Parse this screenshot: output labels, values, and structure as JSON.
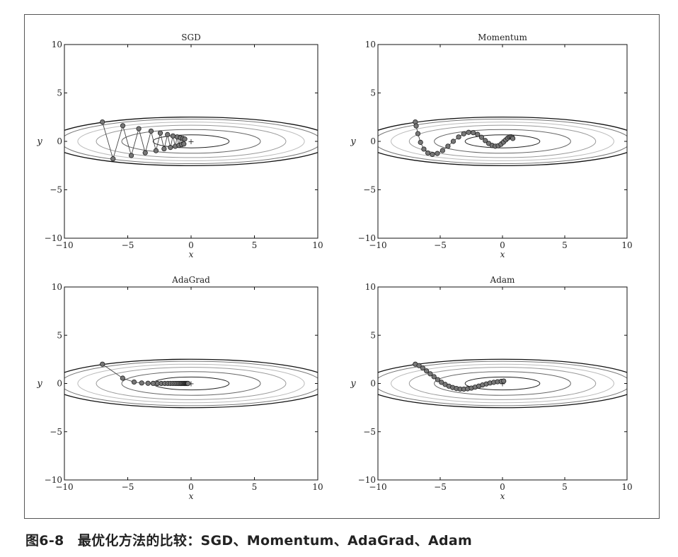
{
  "caption": "图6-8　最优化方法的比较：SGD、Momentum、AdaGrad、Adam",
  "chart_data": [
    {
      "type": "line",
      "title": "SGD",
      "xlabel": "x",
      "ylabel": "y",
      "xlim": [
        -10,
        10
      ],
      "ylim": [
        -10,
        10
      ],
      "xticks": [
        -10,
        -5,
        0,
        5,
        10
      ],
      "yticks": [
        -10,
        -5,
        0,
        5,
        10
      ],
      "xtick_labels": [
        "−10",
        "−5",
        "0",
        "5",
        "10"
      ],
      "ytick_labels": [
        "−10",
        "−5",
        "0",
        "5",
        "10"
      ],
      "contour": "f(x,y) = x^2/20 + y^2",
      "minimum_marker": "+",
      "series": [
        {
          "x": [
            -7.0,
            -6.16,
            -5.39,
            -4.72,
            -4.13,
            -3.62,
            -3.16,
            -2.77,
            -2.43,
            -2.13,
            -1.86,
            -1.63,
            -1.43,
            -1.25,
            -1.1,
            -0.96,
            -0.84,
            -0.74,
            -0.65,
            -0.57,
            -0.5
          ],
          "y": [
            2.0,
            -1.8,
            1.62,
            -1.46,
            1.31,
            -1.18,
            1.06,
            -0.96,
            0.86,
            -0.77,
            0.7,
            -0.63,
            0.56,
            -0.51,
            0.46,
            -0.41,
            0.37,
            -0.33,
            0.3,
            -0.27,
            0.24
          ]
        }
      ]
    },
    {
      "type": "line",
      "title": "Momentum",
      "xlabel": "x",
      "ylabel": "y",
      "xlim": [
        -10,
        10
      ],
      "ylim": [
        -10,
        10
      ],
      "xticks": [
        -10,
        -5,
        0,
        5,
        10
      ],
      "yticks": [
        -10,
        -5,
        0,
        5,
        10
      ],
      "xtick_labels": [
        "−10",
        "−5",
        "0",
        "5",
        "10"
      ],
      "ytick_labels": [
        "−10",
        "−5",
        "0",
        "5",
        "10"
      ],
      "contour": "f(x,y) = x^2/20 + y^2",
      "minimum_marker": "+",
      "series": [
        {
          "x": [
            -7.0,
            -6.93,
            -6.79,
            -6.58,
            -6.31,
            -5.99,
            -5.63,
            -5.23,
            -4.81,
            -4.38,
            -3.95,
            -3.52,
            -3.11,
            -2.72,
            -2.35,
            -2.0,
            -1.68,
            -1.38,
            -1.1,
            -0.83,
            -0.58,
            -0.34,
            -0.12,
            0.08,
            0.26,
            0.42,
            0.56,
            0.68,
            0.78,
            0.83
          ],
          "y": [
            2.0,
            1.6,
            0.8,
            -0.1,
            -0.8,
            -1.2,
            -1.35,
            -1.25,
            -0.95,
            -0.5,
            0.0,
            0.45,
            0.78,
            0.93,
            0.9,
            0.72,
            0.42,
            0.08,
            -0.22,
            -0.42,
            -0.5,
            -0.45,
            -0.3,
            -0.08,
            0.15,
            0.33,
            0.45,
            0.48,
            0.42,
            0.3
          ]
        }
      ]
    },
    {
      "type": "line",
      "title": "AdaGrad",
      "xlabel": "x",
      "ylabel": "y",
      "xlim": [
        -10,
        10
      ],
      "ylim": [
        -10,
        10
      ],
      "xticks": [
        -10,
        -5,
        0,
        5,
        10
      ],
      "yticks": [
        -10,
        -5,
        0,
        5,
        10
      ],
      "xtick_labels": [
        "−10",
        "−5",
        "0",
        "5",
        "10"
      ],
      "ytick_labels": [
        "−10",
        "−5",
        "0",
        "5",
        "10"
      ],
      "contour": "f(x,y) = x^2/20 + y^2",
      "minimum_marker": "+",
      "series": [
        {
          "x": [
            -7.0,
            -5.4,
            -4.5,
            -3.9,
            -3.4,
            -3.0,
            -2.65,
            -2.35,
            -2.08,
            -1.84,
            -1.63,
            -1.44,
            -1.27,
            -1.12,
            -0.99,
            -0.87,
            -0.77,
            -0.68,
            -0.6,
            -0.53,
            -0.46,
            -0.41,
            -0.36,
            -0.31,
            -0.27,
            -0.24
          ],
          "y": [
            2.0,
            0.55,
            0.15,
            0.05,
            0.02,
            0.01,
            0.0,
            0.0,
            0.0,
            0.0,
            0.0,
            0.0,
            0.0,
            0.0,
            0.0,
            0.0,
            0.0,
            0.0,
            0.0,
            0.0,
            0.0,
            0.0,
            0.0,
            0.0,
            0.0,
            0.0
          ]
        }
      ]
    },
    {
      "type": "line",
      "title": "Adam",
      "xlabel": "x",
      "ylabel": "y",
      "xlim": [
        -10,
        10
      ],
      "ylim": [
        -10,
        10
      ],
      "xticks": [
        -10,
        -5,
        0,
        5,
        10
      ],
      "yticks": [
        -10,
        -5,
        0,
        5,
        10
      ],
      "xtick_labels": [
        "−10",
        "−5",
        "0",
        "5",
        "10"
      ],
      "ytick_labels": [
        "−10",
        "−5",
        "0",
        "5",
        "10"
      ],
      "contour": "f(x,y) = x^2/20 + y^2",
      "minimum_marker": "+",
      "series": [
        {
          "x": [
            -7.0,
            -6.7,
            -6.4,
            -6.1,
            -5.8,
            -5.5,
            -5.2,
            -4.9,
            -4.6,
            -4.3,
            -4.0,
            -3.7,
            -3.4,
            -3.1,
            -2.8,
            -2.5,
            -2.2,
            -1.9,
            -1.6,
            -1.3,
            -1.0,
            -0.7,
            -0.4,
            -0.1,
            0.1
          ],
          "y": [
            2.0,
            1.85,
            1.6,
            1.3,
            1.0,
            0.7,
            0.4,
            0.12,
            -0.1,
            -0.28,
            -0.42,
            -0.52,
            -0.58,
            -0.58,
            -0.55,
            -0.48,
            -0.38,
            -0.27,
            -0.15,
            -0.05,
            0.05,
            0.12,
            0.18,
            0.22,
            0.25
          ]
        }
      ]
    }
  ]
}
